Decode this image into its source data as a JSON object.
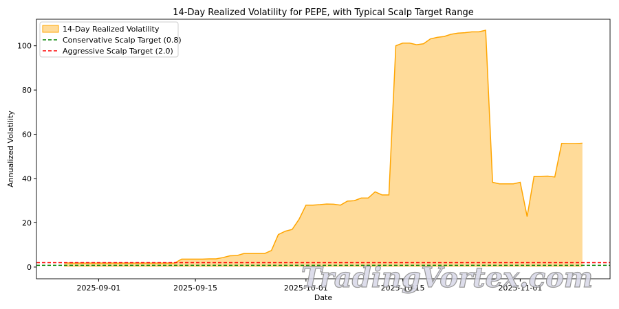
{
  "chart_data": {
    "type": "area",
    "title": "14-Day Realized Volatility for PEPE, with Typical Scalp Target Range",
    "xlabel": "Date",
    "ylabel": "Annualized Volatility",
    "xlim": [
      "2025-08-23",
      "2025-11-14"
    ],
    "ylim": [
      -5.3,
      112
    ],
    "x_ticks": [
      "2025-09-01",
      "2025-09-15",
      "2025-10-01",
      "2025-10-15",
      "2025-11-01"
    ],
    "y_ticks": [
      0,
      20,
      40,
      60,
      80,
      100
    ],
    "grid": false,
    "legend": "top-left",
    "x": [
      "2025-08-27",
      "2025-08-28",
      "2025-08-29",
      "2025-08-30",
      "2025-08-31",
      "2025-09-01",
      "2025-09-02",
      "2025-09-03",
      "2025-09-04",
      "2025-09-05",
      "2025-09-06",
      "2025-09-07",
      "2025-09-08",
      "2025-09-09",
      "2025-09-10",
      "2025-09-11",
      "2025-09-12",
      "2025-09-13",
      "2025-09-14",
      "2025-09-15",
      "2025-09-16",
      "2025-09-17",
      "2025-09-18",
      "2025-09-19",
      "2025-09-20",
      "2025-09-21",
      "2025-09-22",
      "2025-09-23",
      "2025-09-24",
      "2025-09-25",
      "2025-09-26",
      "2025-09-27",
      "2025-09-28",
      "2025-09-29",
      "2025-09-30",
      "2025-10-01",
      "2025-10-02",
      "2025-10-03",
      "2025-10-04",
      "2025-10-05",
      "2025-10-06",
      "2025-10-07",
      "2025-10-08",
      "2025-10-09",
      "2025-10-10",
      "2025-10-11",
      "2025-10-12",
      "2025-10-13",
      "2025-10-14",
      "2025-10-15",
      "2025-10-16",
      "2025-10-17",
      "2025-10-18",
      "2025-10-19",
      "2025-10-20",
      "2025-10-21",
      "2025-10-22",
      "2025-10-23",
      "2025-10-24",
      "2025-10-25",
      "2025-10-26",
      "2025-10-27",
      "2025-10-28",
      "2025-10-29",
      "2025-10-30",
      "2025-10-31",
      "2025-11-01",
      "2025-11-02",
      "2025-11-03",
      "2025-11-04",
      "2025-11-05",
      "2025-11-06",
      "2025-11-07",
      "2025-11-08",
      "2025-11-09",
      "2025-11-10"
    ],
    "series": [
      {
        "name": "14-Day Realized Volatility",
        "color": "#ffa500",
        "values": [
          1.9,
          1.8,
          1.8,
          1.8,
          1.8,
          1.8,
          1.8,
          1.8,
          1.8,
          1.8,
          1.8,
          1.8,
          1.8,
          1.8,
          1.8,
          1.8,
          1.8,
          3.6,
          3.6,
          3.6,
          3.6,
          3.7,
          3.7,
          4.3,
          5.1,
          5.2,
          6.1,
          6.1,
          6.1,
          6.1,
          7.5,
          14.7,
          16.2,
          17.0,
          21.6,
          28.0,
          28.0,
          28.2,
          28.5,
          28.4,
          28.0,
          29.8,
          30.0,
          31.2,
          31.2,
          34.0,
          32.6,
          32.6,
          100.0,
          101.2,
          101.2,
          100.5,
          100.9,
          103.1,
          103.8,
          104.2,
          105.2,
          105.7,
          105.9,
          106.3,
          106.3,
          107.0,
          38.3,
          37.6,
          37.6,
          37.6,
          38.3,
          22.8,
          41.0,
          41.0,
          41.1,
          40.7,
          55.9,
          55.8,
          55.8,
          56.0
        ]
      }
    ],
    "reference_lines": [
      {
        "name": "Conservative Scalp Target (0.8)",
        "value": 0.8,
        "color": "#008000",
        "style": "dashed"
      },
      {
        "name": "Aggressive Scalp Target (2.0)",
        "value": 2.0,
        "color": "#ff0000",
        "style": "dashed"
      }
    ]
  },
  "watermark": "TradingVortex.com"
}
